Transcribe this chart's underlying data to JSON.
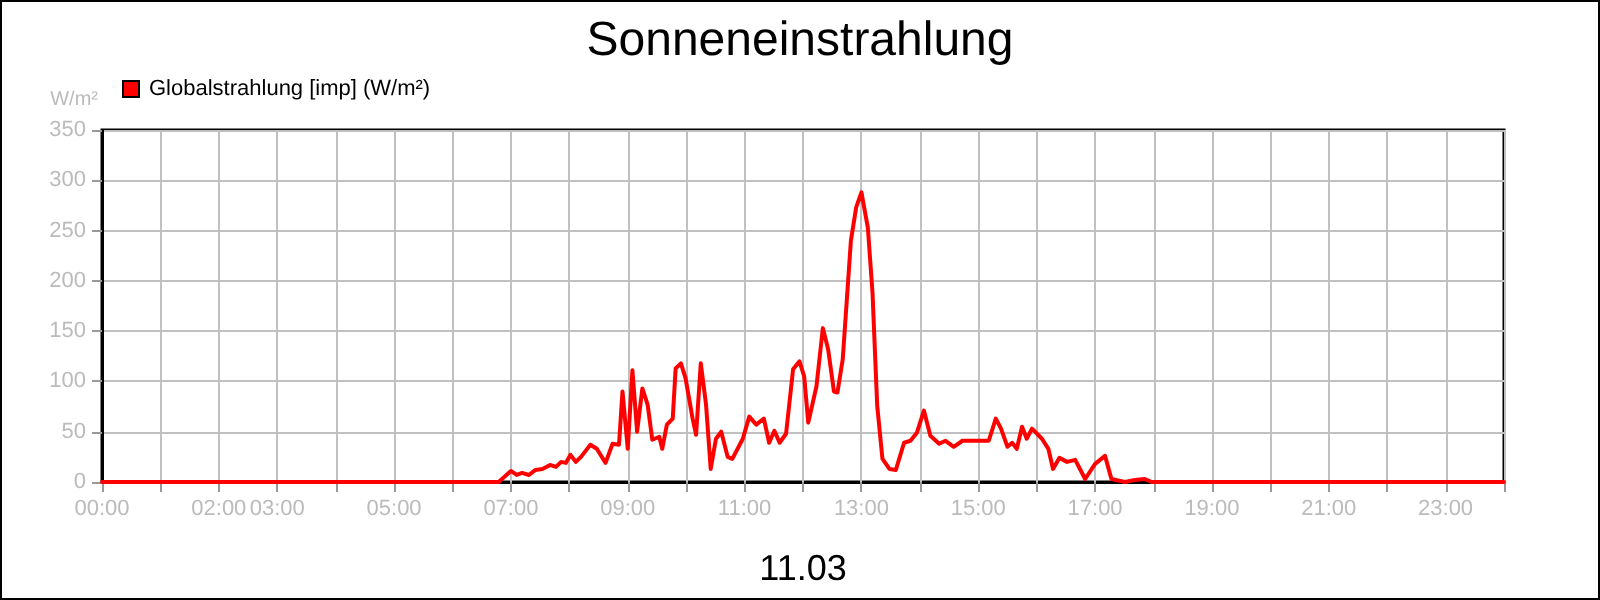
{
  "chart_data": {
    "type": "line",
    "title": "Sonneneinstrahlung",
    "xlabel": "11.03",
    "ylabel": "W/m²",
    "xlim": [
      0,
      24
    ],
    "xticks": [
      {
        "value": 0,
        "label": "00:00"
      },
      {
        "value": 1,
        "label": null
      },
      {
        "value": 2,
        "label": "02:00"
      },
      {
        "value": 3,
        "label": "03:00"
      },
      {
        "value": 4,
        "label": null
      },
      {
        "value": 5,
        "label": "05:00"
      },
      {
        "value": 6,
        "label": null
      },
      {
        "value": 7,
        "label": "07:00"
      },
      {
        "value": 8,
        "label": null
      },
      {
        "value": 9,
        "label": "09:00"
      },
      {
        "value": 10,
        "label": null
      },
      {
        "value": 11,
        "label": "11:00"
      },
      {
        "value": 12,
        "label": null
      },
      {
        "value": 13,
        "label": "13:00"
      },
      {
        "value": 14,
        "label": null
      },
      {
        "value": 15,
        "label": "15:00"
      },
      {
        "value": 16,
        "label": null
      },
      {
        "value": 17,
        "label": "17:00"
      },
      {
        "value": 18,
        "label": null
      },
      {
        "value": 19,
        "label": "19:00"
      },
      {
        "value": 20,
        "label": null
      },
      {
        "value": 21,
        "label": "21:00"
      },
      {
        "value": 22,
        "label": null
      },
      {
        "value": 23,
        "label": "23:00"
      },
      {
        "value": 24,
        "label": null
      }
    ],
    "ylim": [
      0,
      350
    ],
    "yticks": [
      0,
      50,
      100,
      150,
      200,
      250,
      300,
      350
    ],
    "grid": true,
    "legend": "top left",
    "marker": "none",
    "line_style": "solid",
    "series": [
      {
        "name": "Globalstrahlung [imp] (W/m²)",
        "color": "#ff0000",
        "x": [
          0,
          6.79,
          7.0,
          7.1,
          7.19,
          7.31,
          7.42,
          7.54,
          7.67,
          7.77,
          7.86,
          7.94,
          8.02,
          8.11,
          8.2,
          8.36,
          8.47,
          8.62,
          8.74,
          8.85,
          8.91,
          9.0,
          9.08,
          9.16,
          9.25,
          9.34,
          9.42,
          9.54,
          9.59,
          9.67,
          9.77,
          9.82,
          9.91,
          9.99,
          10.11,
          10.17,
          10.25,
          10.34,
          10.42,
          10.51,
          10.6,
          10.71,
          10.79,
          10.97,
          11.08,
          11.2,
          11.33,
          11.42,
          11.51,
          11.6,
          11.71,
          11.83,
          11.94,
          12.02,
          12.09,
          12.23,
          12.34,
          12.43,
          12.53,
          12.59,
          12.68,
          12.82,
          12.91,
          13.0,
          13.11,
          13.19,
          13.27,
          13.36,
          13.48,
          13.59,
          13.73,
          13.84,
          13.95,
          14.07,
          14.18,
          14.33,
          14.44,
          14.58,
          14.73,
          15.18,
          15.3,
          15.39,
          15.5,
          15.58,
          15.66,
          15.75,
          15.83,
          15.92,
          16.09,
          16.2,
          16.28,
          16.39,
          16.52,
          16.66,
          16.83,
          17.0,
          17.17,
          17.28,
          17.51,
          17.68,
          17.85,
          17.97,
          24
        ],
        "values": [
          0,
          0,
          11,
          7,
          9,
          7,
          12,
          13,
          17,
          15,
          20,
          19,
          27,
          20,
          25,
          37,
          33,
          19,
          38,
          37,
          90,
          33,
          111,
          50,
          93,
          77,
          42,
          45,
          33,
          57,
          63,
          113,
          118,
          103,
          63,
          47,
          118,
          77,
          13,
          43,
          50,
          25,
          23,
          43,
          65,
          57,
          63,
          39,
          51,
          39,
          48,
          112,
          120,
          105,
          59,
          95,
          153,
          132,
          90,
          89,
          122,
          240,
          273,
          288,
          253,
          188,
          76,
          23,
          13,
          12,
          39,
          41,
          49,
          71,
          46,
          38,
          41,
          35,
          41,
          41,
          63,
          53,
          35,
          39,
          33,
          55,
          43,
          53,
          43,
          33,
          13,
          24,
          20,
          22,
          3,
          18,
          26,
          3,
          0,
          2,
          3,
          0,
          0
        ]
      }
    ]
  }
}
